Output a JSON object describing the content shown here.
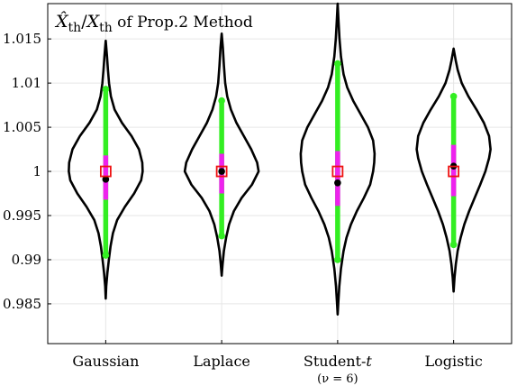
{
  "chart_data": {
    "type": "violin",
    "title": "X̂th/Xth of Prop.2 Method",
    "title_parts": {
      "numerator_symbol": "X̂",
      "denominator_symbol": "X",
      "subscript": "th",
      "rest": "of Prop.2 Method"
    },
    "xlabel": "",
    "ylabel": "",
    "ylim": [
      0.9805,
      1.019
    ],
    "yticks": [
      0.985,
      0.99,
      0.995,
      1,
      1.005,
      1.01,
      1.015
    ],
    "ytick_labels": [
      "0.985",
      "0.99",
      "0.995",
      "1",
      "1.005",
      "1.01",
      "1.015"
    ],
    "grid": true,
    "colors": {
      "violin_outline": "#000000",
      "inner_range": "#33ee22",
      "iqr": "#ee22ee",
      "mean_marker": "#000000",
      "median_marker": "#ee1111",
      "grid": "#e6e6e6",
      "axis": "#000000"
    },
    "categories": [
      {
        "label": "Gaussian",
        "sublabel": "",
        "extent": [
          0.9856,
          1.0148
        ],
        "density": [
          [
            0.9856,
            0.0
          ],
          [
            0.987,
            0.014
          ],
          [
            0.9885,
            0.045
          ],
          [
            0.99,
            0.085
          ],
          [
            0.9915,
            0.13
          ],
          [
            0.993,
            0.195
          ],
          [
            0.9945,
            0.31
          ],
          [
            0.996,
            0.52
          ],
          [
            0.9975,
            0.77
          ],
          [
            0.999,
            0.96
          ],
          [
            1.0,
            1.0
          ],
          [
            1.001,
            0.99
          ],
          [
            1.0025,
            0.9
          ],
          [
            1.004,
            0.7
          ],
          [
            1.0055,
            0.44
          ],
          [
            1.007,
            0.24
          ],
          [
            1.0085,
            0.14
          ],
          [
            1.01,
            0.09
          ],
          [
            1.0115,
            0.06
          ],
          [
            1.013,
            0.035
          ],
          [
            1.0148,
            0.0
          ]
        ],
        "whisker": [
          0.9905,
          1.0093
        ],
        "iqr": [
          0.9968,
          1.0018
        ],
        "mean": 0.9991,
        "median": 1.0
      },
      {
        "label": "Laplace",
        "sublabel": "",
        "extent": [
          0.9882,
          1.0156
        ],
        "density": [
          [
            0.9882,
            0.0
          ],
          [
            0.9895,
            0.025
          ],
          [
            0.991,
            0.06
          ],
          [
            0.9925,
            0.12
          ],
          [
            0.994,
            0.2
          ],
          [
            0.9955,
            0.33
          ],
          [
            0.997,
            0.54
          ],
          [
            0.9985,
            0.82
          ],
          [
            1.0,
            1.0
          ],
          [
            1.001,
            0.96
          ],
          [
            1.0025,
            0.8
          ],
          [
            1.004,
            0.6
          ],
          [
            1.0055,
            0.4
          ],
          [
            1.007,
            0.25
          ],
          [
            1.0085,
            0.15
          ],
          [
            1.01,
            0.095
          ],
          [
            1.012,
            0.06
          ],
          [
            1.014,
            0.032
          ],
          [
            1.0156,
            0.0
          ]
        ],
        "whisker": [
          0.9927,
          1.008
        ],
        "iqr": [
          0.9975,
          1.002
        ],
        "mean": 1.0,
        "median": 1.0
      },
      {
        "label": "Student-t",
        "sublabel": "(ν = 6)",
        "extent": [
          0.9838,
          1.019
        ],
        "density": [
          [
            0.9838,
            0.0
          ],
          [
            0.985,
            0.016
          ],
          [
            0.987,
            0.045
          ],
          [
            0.989,
            0.09
          ],
          [
            0.991,
            0.16
          ],
          [
            0.9925,
            0.24
          ],
          [
            0.994,
            0.36
          ],
          [
            0.9955,
            0.52
          ],
          [
            0.997,
            0.71
          ],
          [
            0.9985,
            0.88
          ],
          [
            1.0,
            0.96
          ],
          [
            1.001,
            0.99
          ],
          [
            1.002,
            1.0
          ],
          [
            1.0035,
            0.96
          ],
          [
            1.005,
            0.82
          ],
          [
            1.0065,
            0.62
          ],
          [
            1.008,
            0.42
          ],
          [
            1.0095,
            0.26
          ],
          [
            1.011,
            0.16
          ],
          [
            1.013,
            0.09
          ],
          [
            1.015,
            0.05
          ],
          [
            1.017,
            0.024
          ],
          [
            1.019,
            0.0
          ]
        ],
        "whisker": [
          0.99,
          1.0122
        ],
        "iqr": [
          0.9961,
          1.0023
        ],
        "mean": 0.9987,
        "median": 1.0
      },
      {
        "label": "Logistic",
        "sublabel": "",
        "extent": [
          0.9864,
          1.0139
        ],
        "density": [
          [
            0.9864,
            0.0
          ],
          [
            0.988,
            0.025
          ],
          [
            0.9895,
            0.06
          ],
          [
            0.991,
            0.11
          ],
          [
            0.9925,
            0.19
          ],
          [
            0.994,
            0.29
          ],
          [
            0.9955,
            0.42
          ],
          [
            0.997,
            0.57
          ],
          [
            0.9985,
            0.72
          ],
          [
            1.0,
            0.86
          ],
          [
            1.0015,
            0.96
          ],
          [
            1.0025,
            1.0
          ],
          [
            1.004,
            0.96
          ],
          [
            1.0055,
            0.82
          ],
          [
            1.007,
            0.62
          ],
          [
            1.0085,
            0.4
          ],
          [
            1.01,
            0.22
          ],
          [
            1.0115,
            0.11
          ],
          [
            1.0125,
            0.06
          ],
          [
            1.0139,
            0.0
          ]
        ],
        "whisker": [
          0.9917,
          1.0085
        ],
        "iqr": [
          0.9972,
          1.003
        ],
        "mean": 1.0006,
        "median": 1.0
      }
    ]
  }
}
